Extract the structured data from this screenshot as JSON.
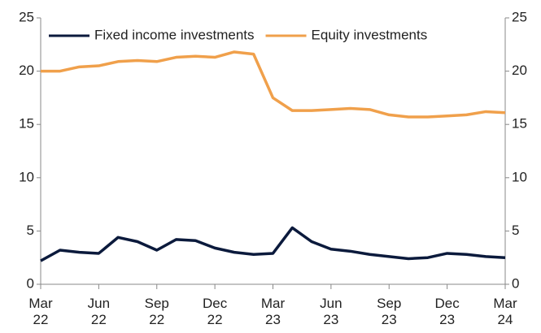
{
  "chart_data": {
    "type": "line",
    "categories": [
      "Mar 22",
      null,
      null,
      "Jun 22",
      null,
      null,
      "Sep 22",
      null,
      null,
      "Dec 22",
      null,
      null,
      "Mar 23",
      null,
      null,
      "Jun 23",
      null,
      null,
      "Sep 23",
      null,
      null,
      "Dec 23",
      null,
      null,
      "Mar 24"
    ],
    "series": [
      {
        "name": "Fixed income investments",
        "color": "#0b1a3c",
        "values": [
          2.2,
          3.2,
          3.0,
          2.9,
          4.4,
          4.0,
          3.2,
          4.2,
          4.1,
          3.4,
          3.0,
          2.8,
          2.9,
          5.3,
          4.0,
          3.3,
          3.1,
          2.8,
          2.6,
          2.4,
          2.5,
          2.9,
          2.8,
          2.6,
          2.5
        ]
      },
      {
        "name": "Equity investments",
        "color": "#f0a04b",
        "values": [
          20.0,
          20.0,
          20.4,
          20.5,
          20.9,
          21.0,
          20.9,
          21.3,
          21.4,
          21.3,
          21.8,
          21.6,
          17.5,
          16.3,
          16.3,
          16.4,
          16.5,
          16.4,
          15.9,
          15.7,
          15.7,
          15.8,
          15.9,
          16.2,
          16.1
        ]
      }
    ],
    "ylim": [
      0,
      25
    ],
    "yticks": [
      0,
      5,
      10,
      15,
      20,
      25
    ],
    "y2lim": [
      0,
      25
    ],
    "y2ticks": [
      0,
      5,
      10,
      15,
      20,
      25
    ],
    "legend": "top-left"
  }
}
